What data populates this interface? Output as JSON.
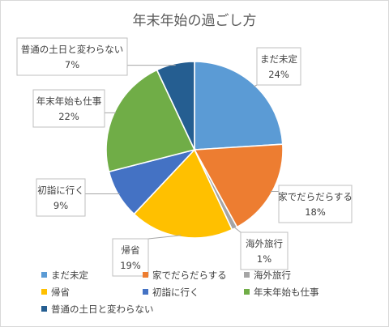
{
  "chart_data": {
    "type": "pie",
    "title": "年末年始の過ごし方",
    "slices": [
      {
        "label": "まだ未定",
        "value": 24,
        "value_label": "24%",
        "color": "#5b9bd5"
      },
      {
        "label": "家でだらだらする",
        "value": 18,
        "value_label": "18%",
        "color": "#ed7d31"
      },
      {
        "label": "海外旅行",
        "value": 1,
        "value_label": "1%",
        "color": "#a5a5a5"
      },
      {
        "label": "帰省",
        "value": 19,
        "value_label": "19%",
        "color": "#ffc000"
      },
      {
        "label": "初詣に行く",
        "value": 9,
        "value_label": "9%",
        "color": "#4472c4"
      },
      {
        "label": "年末年始も仕事",
        "value": 22,
        "value_label": "22%",
        "color": "#70ad47"
      },
      {
        "label": "普通の土日と変わらない",
        "value": 7,
        "value_label": "7%",
        "color": "#255e91"
      }
    ],
    "legend_position": "bottom"
  }
}
